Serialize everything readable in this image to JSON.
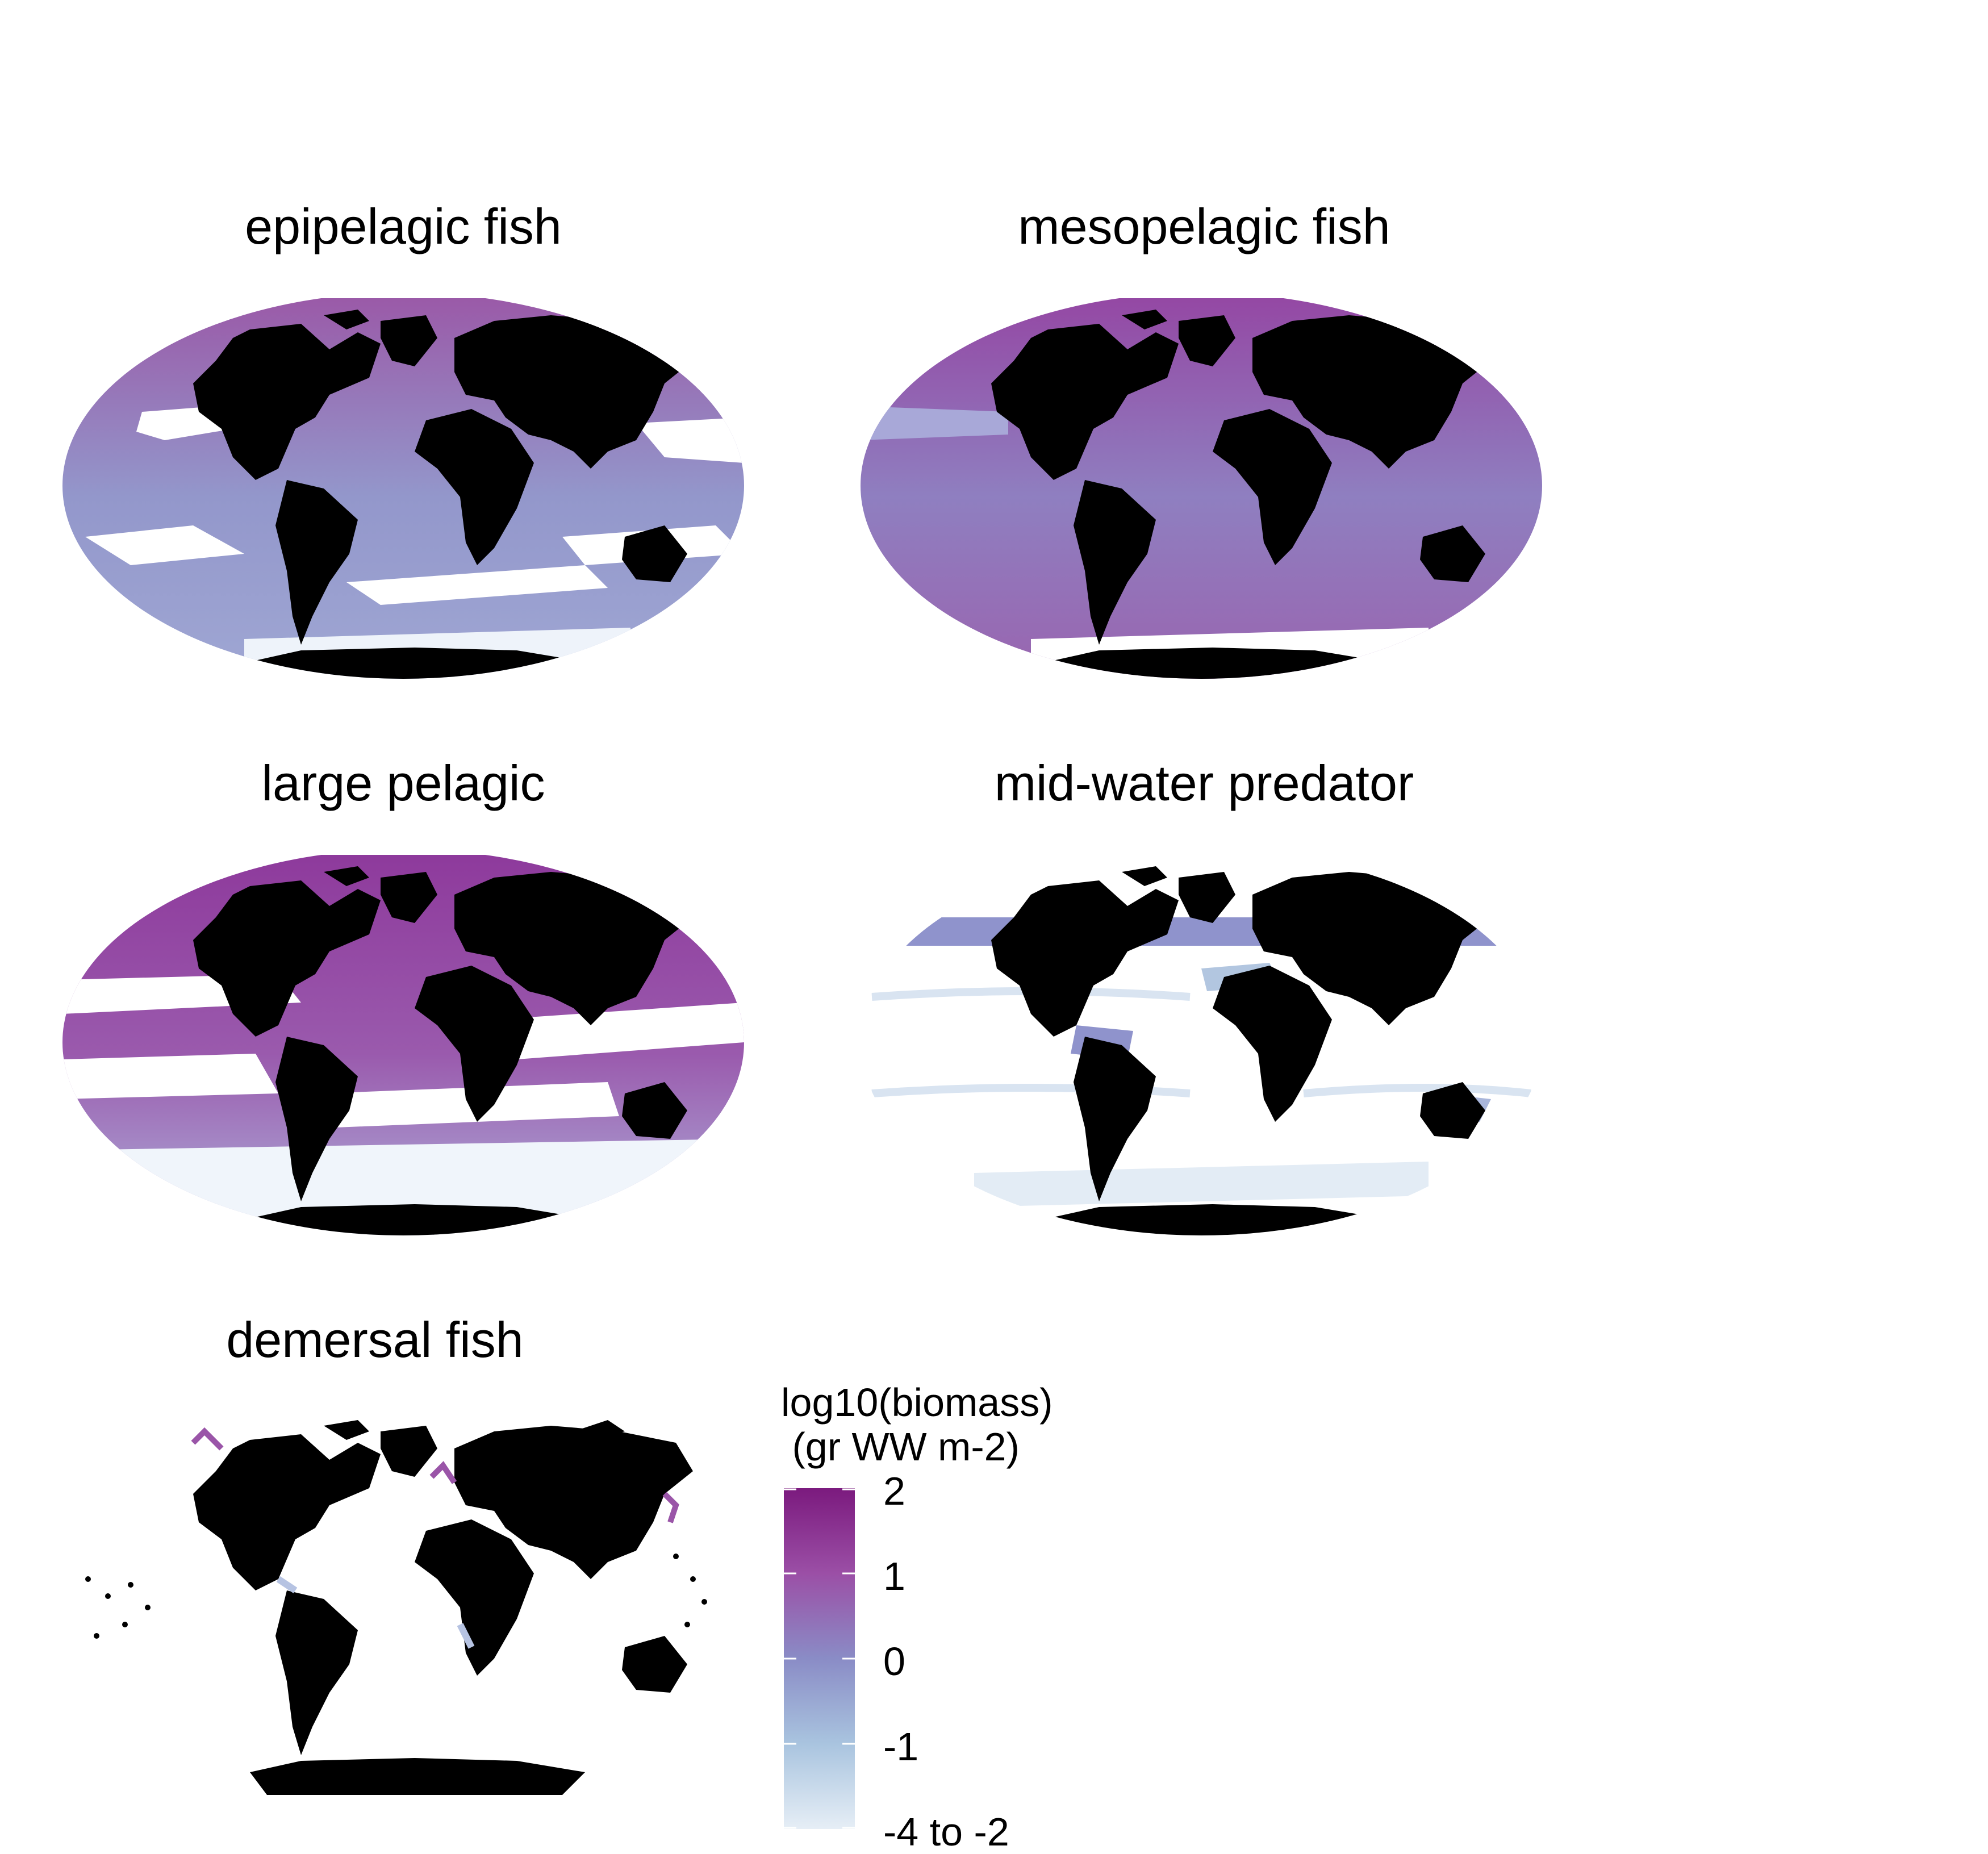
{
  "panels": [
    {
      "title": "epipelagic fish"
    },
    {
      "title": "mesopelagic fish"
    },
    {
      "title": "large pelagic"
    },
    {
      "title": "mid-water predator"
    },
    {
      "title": "demersal fish"
    }
  ],
  "legend": {
    "title_line1": "log10(biomass)",
    "title_line2": " (gr WW m-2)",
    "labels": [
      "2",
      "1",
      "0",
      "-1",
      "-4 to -2"
    ],
    "colors": {
      "high": "#7b1a7e",
      "upper": "#9b4fa6",
      "mid": "#8a8cc6",
      "lower": "#a9c4df",
      "low": "#e6eef6"
    }
  },
  "colors": {
    "land": "#000000",
    "ocean_high": "#8e3c99",
    "ocean_mid": "#8f93c9",
    "ocean_low": "#e3ecf5",
    "no_data": "#ffffff"
  }
}
